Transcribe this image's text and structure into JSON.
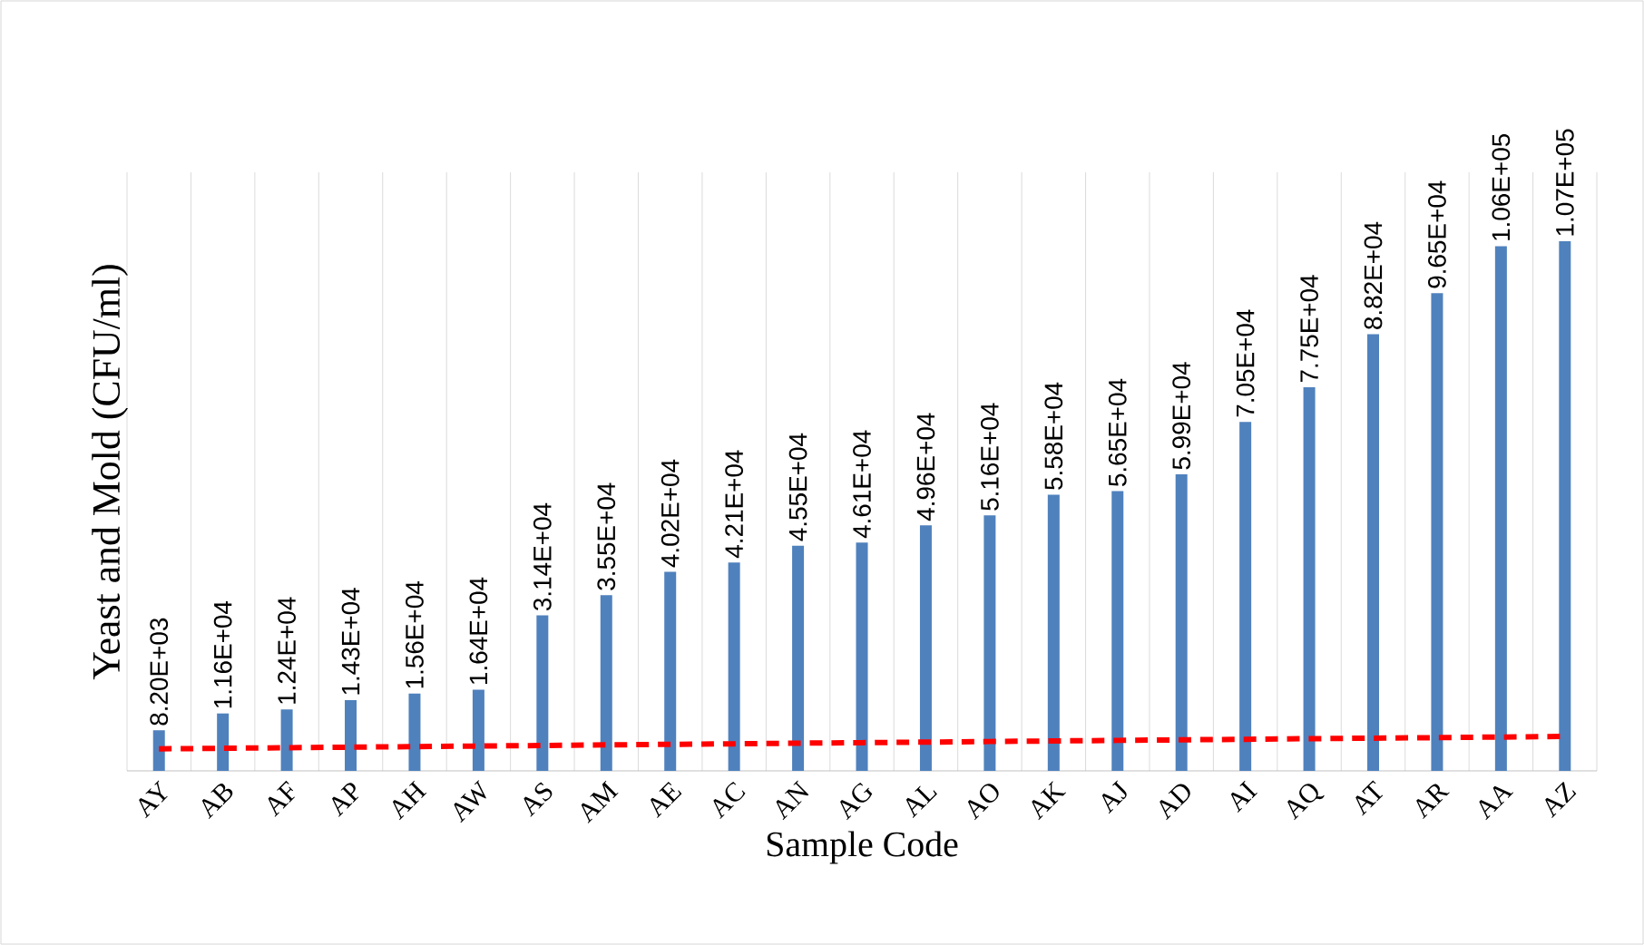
{
  "chart_data": {
    "type": "bar",
    "xlabel": "Sample Code",
    "ylabel": "Yeast and Mold (CFU/ml)",
    "categories": [
      "AY",
      "AB",
      "AF",
      "AP",
      "AH",
      "AW",
      "AS",
      "AM",
      "AE",
      "AC",
      "AN",
      "AG",
      "AL",
      "AO",
      "AK",
      "AJ",
      "AD",
      "AI",
      "AQ",
      "AT",
      "AR",
      "AA",
      "AZ"
    ],
    "series": [
      {
        "color": "#4f81bd",
        "values": [
          8200,
          11600,
          12400,
          14300,
          15600,
          16400,
          31400,
          35500,
          40200,
          42100,
          45500,
          46100,
          49600,
          51600,
          55800,
          56500,
          59900,
          70500,
          77500,
          88200,
          96500,
          106000,
          107000
        ],
        "value_labels": [
          "8.20E+03",
          "1.16E+04",
          "1.24E+04",
          "1.43E+04",
          "1.56E+04",
          "1.64E+04",
          "3.14E+04",
          "3.55E+04",
          "4.02E+04",
          "4.21E+04",
          "4.55E+04",
          "4.61E+04",
          "4.96E+04",
          "5.16E+04",
          "5.58E+04",
          "5.65E+04",
          "5.99E+04",
          "7.05E+04",
          "7.75E+04",
          "8.82E+04",
          "9.65E+04",
          "1.06E+05",
          "1.07E+05"
        ]
      },
      {
        "type": "line",
        "color": "#ff0000",
        "line_style": "dashed",
        "values": [
          4450,
          4560,
          4680,
          4790,
          4900,
          5020,
          5130,
          5250,
          5360,
          5470,
          5590,
          5700,
          5810,
          5930,
          6040,
          6160,
          6270,
          6380,
          6500,
          6610,
          6720,
          6840,
          6950
        ]
      }
    ],
    "grid": "x",
    "tick_labels": "x"
  }
}
